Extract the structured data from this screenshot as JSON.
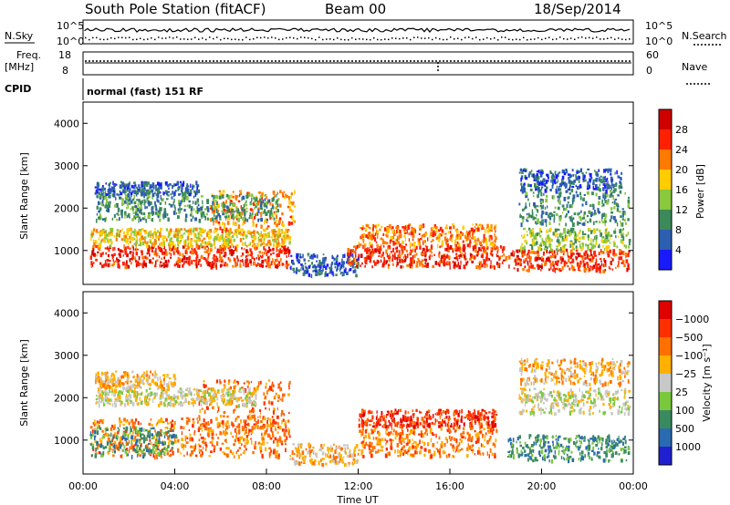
{
  "header": {
    "station": "South Pole Station (fitACF)",
    "beam": "Beam 00",
    "date": "18/Sep/2014"
  },
  "strip_labels": {
    "nsky": "N.Sky",
    "nsearch": "N.Search",
    "freq_line1": "Freq.",
    "freq_line2": "[MHz]",
    "nave": "Nave",
    "cpid": "CPID",
    "cpid_value": "normal (fast) 151 RF",
    "noise_ticks_left": [
      "10^5",
      "10^0"
    ],
    "noise_ticks_right": [
      "10^5",
      "10^0"
    ],
    "freq_ticks": [
      "18",
      "8"
    ],
    "nave_ticks": [
      "60",
      "0"
    ]
  },
  "chart_data": [
    {
      "type": "heatmap",
      "name": "power",
      "ylabel": "Slant Range [km]",
      "colorbar_label": "Power [dB]",
      "ylim": [
        200,
        4500
      ],
      "yticks": [
        1000,
        2000,
        3000,
        4000
      ],
      "colorbar_levels": [
        "4",
        "8",
        "12",
        "16",
        "20",
        "24",
        "28"
      ],
      "colors": [
        "#1a1aff",
        "#2d5fb0",
        "#3c8a5a",
        "#8ac83c",
        "#ffcc00",
        "#ff7a00",
        "#ff2000",
        "#d00000"
      ],
      "regions": [
        {
          "t0": 0.3,
          "t1": 9.0,
          "r0": 600,
          "r1": 1100,
          "level": 6
        },
        {
          "t0": 0.3,
          "t1": 9.0,
          "r0": 1100,
          "r1": 1500,
          "level": 4
        },
        {
          "t0": 5.5,
          "t1": 9.2,
          "r0": 1400,
          "r1": 2400,
          "level": 5
        },
        {
          "t0": 0.5,
          "t1": 8.5,
          "r0": 1700,
          "r1": 2300,
          "level": 2
        },
        {
          "t0": 0.5,
          "t1": 5.0,
          "r0": 2300,
          "r1": 2600,
          "level": 1
        },
        {
          "t0": 9.0,
          "t1": 12.0,
          "r0": 400,
          "r1": 900,
          "level": 1
        },
        {
          "t0": 11.5,
          "t1": 18.5,
          "r0": 600,
          "r1": 1100,
          "level": 6
        },
        {
          "t0": 12.0,
          "t1": 18.0,
          "r0": 1100,
          "r1": 1600,
          "level": 5
        },
        {
          "t0": 18.5,
          "t1": 23.8,
          "r0": 500,
          "r1": 1000,
          "level": 6
        },
        {
          "t0": 19.0,
          "t1": 23.8,
          "r0": 1000,
          "r1": 1500,
          "level": 3
        },
        {
          "t0": 19.0,
          "t1": 23.8,
          "r0": 1600,
          "r1": 2400,
          "level": 2
        },
        {
          "t0": 19.0,
          "t1": 23.5,
          "r0": 2400,
          "r1": 2900,
          "level": 1
        }
      ]
    },
    {
      "type": "heatmap",
      "name": "velocity",
      "ylabel": "Slant Range [km]",
      "colorbar_label": "Velocity [m s⁻¹]",
      "ylim": [
        200,
        4500
      ],
      "yticks": [
        1000,
        2000,
        3000,
        4000
      ],
      "xlabel": "Time UT",
      "xticks": [
        "00:00",
        "04:00",
        "08:00",
        "12:00",
        "16:00",
        "20:00",
        "00:00"
      ],
      "xlim": [
        0,
        24
      ],
      "colorbar_levels": [
        "1000",
        "500",
        "100",
        "25",
        "−25",
        "−100",
        "−500",
        "−1000"
      ],
      "colors": [
        "#2020d0",
        "#2a6ab0",
        "#3a8a60",
        "#7ac83c",
        "#c8c8c8",
        "#ffb000",
        "#ff7000",
        "#ff3000",
        "#e00000"
      ],
      "regions": [
        {
          "t0": 0.3,
          "t1": 9.0,
          "r0": 600,
          "r1": 1500,
          "level": 6
        },
        {
          "t0": 0.3,
          "t1": 4.0,
          "r0": 600,
          "r1": 1300,
          "level": 2
        },
        {
          "t0": 5.0,
          "t1": 9.0,
          "r0": 1200,
          "r1": 2400,
          "level": 6
        },
        {
          "t0": 0.5,
          "t1": 7.5,
          "r0": 1800,
          "r1": 2200,
          "level": 4
        },
        {
          "t0": 0.5,
          "t1": 4.0,
          "r0": 2200,
          "r1": 2600,
          "level": 5
        },
        {
          "t0": 9.0,
          "t1": 12.0,
          "r0": 400,
          "r1": 900,
          "level": 5
        },
        {
          "t0": 12.0,
          "t1": 18.0,
          "r0": 600,
          "r1": 1300,
          "level": 6
        },
        {
          "t0": 12.0,
          "t1": 18.0,
          "r0": 1300,
          "r1": 1700,
          "level": 7
        },
        {
          "t0": 18.5,
          "t1": 23.8,
          "r0": 500,
          "r1": 1100,
          "level": 2
        },
        {
          "t0": 19.0,
          "t1": 23.8,
          "r0": 1600,
          "r1": 2200,
          "level": 4
        },
        {
          "t0": 19.0,
          "t1": 23.8,
          "r0": 2300,
          "r1": 2900,
          "level": 5
        }
      ]
    }
  ]
}
